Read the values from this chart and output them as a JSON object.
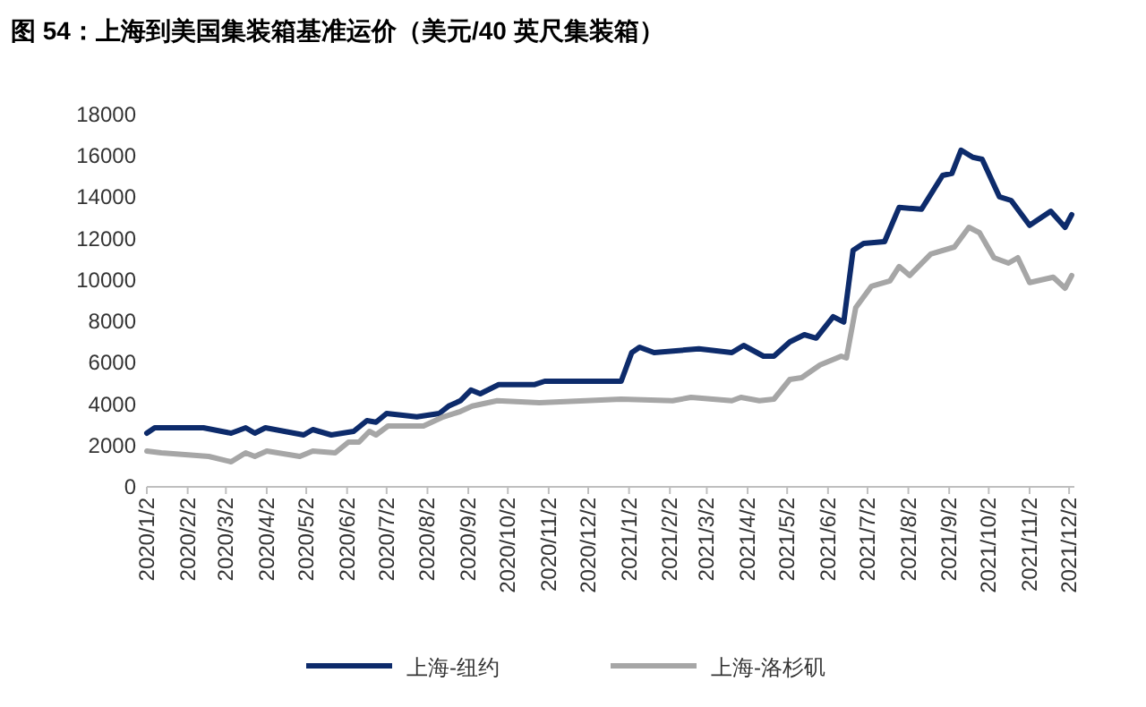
{
  "chart_data": {
    "type": "line",
    "title": "图 54：上海到美国集装箱基准运价（美元/40 英尺集装箱）",
    "xlim": [
      "2020-01-02",
      "2021-12-06"
    ],
    "xticks": [
      {
        "value": "2020-01-02",
        "label": "2020/1/2"
      },
      {
        "value": "2020-02-02",
        "label": "2020/2/2"
      },
      {
        "value": "2020-03-02",
        "label": "2020/3/2"
      },
      {
        "value": "2020-04-02",
        "label": "2020/4/2"
      },
      {
        "value": "2020-05-02",
        "label": "2020/5/2"
      },
      {
        "value": "2020-06-02",
        "label": "2020/6/2"
      },
      {
        "value": "2020-07-02",
        "label": "2020/7/2"
      },
      {
        "value": "2020-08-02",
        "label": "2020/8/2"
      },
      {
        "value": "2020-09-02",
        "label": "2020/9/2"
      },
      {
        "value": "2020-10-02",
        "label": "2020/10/2"
      },
      {
        "value": "2020-11-02",
        "label": "2020/11/2"
      },
      {
        "value": "2020-12-02",
        "label": "2020/12/2"
      },
      {
        "value": "2021-01-02",
        "label": "2021/1/2"
      },
      {
        "value": "2021-02-02",
        "label": "2021/2/2"
      },
      {
        "value": "2021-03-02",
        "label": "2021/3/2"
      },
      {
        "value": "2021-04-02",
        "label": "2021/4/2"
      },
      {
        "value": "2021-05-02",
        "label": "2021/5/2"
      },
      {
        "value": "2021-06-02",
        "label": "2021/6/2"
      },
      {
        "value": "2021-07-02",
        "label": "2021/7/2"
      },
      {
        "value": "2021-08-02",
        "label": "2021/8/2"
      },
      {
        "value": "2021-09-02",
        "label": "2021/9/2"
      },
      {
        "value": "2021-10-02",
        "label": "2021/10/2"
      },
      {
        "value": "2021-11-02",
        "label": "2021/11/2"
      },
      {
        "value": "2021-12-02",
        "label": "2021/12/2"
      }
    ],
    "ylim": [
      0,
      18000
    ],
    "yticks": [
      0,
      2000,
      4000,
      6000,
      8000,
      10000,
      12000,
      14000,
      16000,
      18000
    ],
    "grid": false,
    "legend": "bottom",
    "line_style": "solid",
    "marker": "none",
    "series": [
      {
        "name": "上海-纽约",
        "color": "#0d2b6b",
        "x": [
          "2020-01-02",
          "2020-01-08",
          "2020-02-14",
          "2020-03-06",
          "2020-03-17",
          "2020-03-24",
          "2020-04-01",
          "2020-04-30",
          "2020-05-07",
          "2020-05-21",
          "2020-06-07",
          "2020-06-17",
          "2020-06-24",
          "2020-07-02",
          "2020-07-25",
          "2020-08-11",
          "2020-08-18",
          "2020-08-27",
          "2020-09-04",
          "2020-09-11",
          "2020-09-25",
          "2020-10-22",
          "2020-10-30",
          "2020-12-27",
          "2021-01-04",
          "2021-01-10",
          "2021-01-21",
          "2021-02-24",
          "2021-03-21",
          "2021-03-30",
          "2021-04-14",
          "2021-04-22",
          "2021-05-04",
          "2021-05-15",
          "2021-05-24",
          "2021-06-06",
          "2021-06-14",
          "2021-06-21",
          "2021-06-29",
          "2021-07-15",
          "2021-07-26",
          "2021-08-12",
          "2021-08-28",
          "2021-09-04",
          "2021-09-11",
          "2021-09-20",
          "2021-09-27",
          "2021-10-10",
          "2021-10-19",
          "2021-11-02",
          "2021-11-18",
          "2021-11-29",
          "2021-12-04"
        ],
        "values": [
          2600,
          2860,
          2860,
          2600,
          2860,
          2600,
          2860,
          2510,
          2770,
          2510,
          2680,
          3200,
          3120,
          3550,
          3380,
          3550,
          3900,
          4160,
          4680,
          4500,
          4940,
          4940,
          5110,
          5110,
          6490,
          6750,
          6490,
          6670,
          6490,
          6840,
          6320,
          6320,
          7010,
          7360,
          7190,
          8230,
          7970,
          11430,
          11770,
          11860,
          13510,
          13420,
          15060,
          15150,
          16280,
          15930,
          15840,
          14030,
          13850,
          12640,
          13330,
          12550,
          13160
        ]
      },
      {
        "name": "上海-洛杉矶",
        "color": "#a6a6a6",
        "x": [
          "2020-01-02",
          "2020-01-13",
          "2020-02-18",
          "2020-03-06",
          "2020-03-17",
          "2020-03-24",
          "2020-04-02",
          "2020-04-27",
          "2020-05-07",
          "2020-05-24",
          "2020-06-03",
          "2020-06-11",
          "2020-06-19",
          "2020-06-24",
          "2020-07-03",
          "2020-07-30",
          "2020-08-14",
          "2020-08-27",
          "2020-09-05",
          "2020-09-24",
          "2020-10-26",
          "2020-12-27",
          "2021-02-04",
          "2021-02-18",
          "2021-03-21",
          "2021-03-28",
          "2021-04-11",
          "2021-04-22",
          "2021-05-04",
          "2021-05-13",
          "2021-05-27",
          "2021-06-12",
          "2021-06-16",
          "2021-06-23",
          "2021-07-05",
          "2021-07-19",
          "2021-07-26",
          "2021-08-03",
          "2021-08-19",
          "2021-09-06",
          "2021-09-17",
          "2021-09-25",
          "2021-10-06",
          "2021-10-17",
          "2021-10-24",
          "2021-11-02",
          "2021-11-20",
          "2021-11-29",
          "2021-12-04"
        ],
        "values": [
          1730,
          1640,
          1470,
          1210,
          1640,
          1470,
          1730,
          1470,
          1730,
          1640,
          2160,
          2160,
          2680,
          2510,
          2940,
          2940,
          3380,
          3640,
          3900,
          4160,
          4070,
          4240,
          4160,
          4330,
          4160,
          4330,
          4160,
          4240,
          5190,
          5280,
          5890,
          6320,
          6230,
          8660,
          9700,
          9960,
          10650,
          10220,
          11260,
          11600,
          12550,
          12290,
          11080,
          10820,
          11080,
          9870,
          10130,
          9610,
          10220
        ]
      }
    ]
  }
}
